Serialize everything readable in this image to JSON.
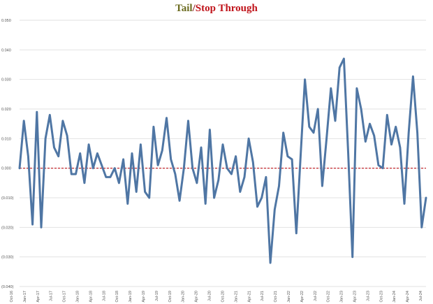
{
  "chart_data": {
    "type": "line",
    "title_parts": [
      "Tail",
      "/",
      "Stop Through"
    ],
    "xlabel": "",
    "ylabel": "",
    "ylim": [
      -0.04,
      0.05
    ],
    "y_ticks": [
      0.05,
      0.04,
      0.03,
      0.02,
      0.01,
      0.0,
      -0.01,
      -0.02,
      -0.03,
      -0.04
    ],
    "y_tick_labels": [
      "0.050",
      "0.040",
      "0.030",
      "0.020",
      "0.010",
      "0.000",
      "(0.010)",
      "(0.020)",
      "(0.030)",
      "(0.040)"
    ],
    "x_tick_labels": [
      "Oct-16",
      "Jan-17",
      "Apr-17",
      "Jul-17",
      "Oct-17",
      "Jan-18",
      "Apr-18",
      "Jul-18",
      "Oct-18",
      "Jan-19",
      "Apr-19",
      "Jul-19",
      "Oct-19",
      "Jan-20",
      "Apr-20",
      "Jul-20",
      "Oct-20",
      "Jan-21",
      "Apr-21",
      "Jul-21",
      "Oct-21",
      "Jan-22",
      "Apr-22",
      "Jul-22",
      "Oct-22",
      "Jan-23",
      "Apr-23",
      "Jul-23",
      "Oct-23",
      "Jan-24",
      "Apr-24",
      "Jul-24"
    ],
    "grid": true,
    "reference_line": 0.0,
    "colors": {
      "line": "#4f76a4",
      "reference": "#c0141b",
      "grid": "#e2e2e2"
    },
    "series": [
      {
        "values": [
          0.0,
          0.016,
          0.004,
          -0.019,
          0.019,
          -0.02,
          0.01,
          0.018,
          0.007,
          0.004,
          0.016,
          0.011,
          -0.002,
          -0.002,
          0.005,
          -0.005,
          0.008,
          0.0,
          0.005,
          0.001,
          -0.003,
          -0.003,
          0.0,
          -0.005,
          0.003,
          -0.012,
          0.005,
          -0.008,
          0.008,
          -0.008,
          -0.01,
          0.014,
          0.001,
          0.006,
          0.017,
          0.003,
          -0.002,
          -0.011,
          0.0,
          0.016,
          0.0,
          -0.005,
          0.007,
          -0.012,
          0.013,
          -0.01,
          -0.004,
          0.008,
          0.0,
          -0.002,
          0.004,
          -0.008,
          -0.003,
          0.01,
          0.002,
          -0.013,
          -0.01,
          -0.003,
          -0.032,
          -0.014,
          -0.006,
          0.012,
          0.004,
          0.003,
          -0.022,
          0.004,
          0.03,
          0.014,
          0.012,
          0.02,
          -0.006,
          0.01,
          0.027,
          0.016,
          0.034,
          0.037,
          0.005,
          -0.03,
          0.027,
          0.02,
          0.009,
          0.015,
          0.011,
          0.001,
          0.0,
          0.018,
          0.008,
          0.014,
          0.007,
          -0.012,
          0.012,
          0.031,
          0.012,
          -0.02,
          -0.01
        ]
      }
    ]
  }
}
